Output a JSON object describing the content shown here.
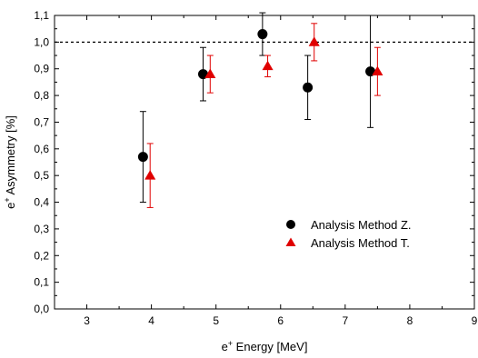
{
  "chart_data": {
    "type": "scatter",
    "title": "",
    "xlabel": {
      "prefix": "e",
      "sup": "+",
      "suffix": " Energy [MeV]"
    },
    "ylabel": {
      "prefix": "e",
      "sup": "+",
      "suffix": " Asymmetry [%]"
    },
    "xlim": [
      2.5,
      9.0
    ],
    "ylim": [
      0.0,
      1.1
    ],
    "x_ticks": [
      3,
      4,
      5,
      6,
      7,
      8,
      9
    ],
    "x_tick_labels": [
      "3",
      "4",
      "5",
      "6",
      "7",
      "8",
      "9"
    ],
    "y_ticks": [
      0.0,
      0.1,
      0.2,
      0.3,
      0.4,
      0.5,
      0.6,
      0.7,
      0.8,
      0.9,
      1.0,
      1.1
    ],
    "y_tick_labels": [
      "0,0",
      "0,1",
      "0,2",
      "0,3",
      "0,4",
      "0,5",
      "0,6",
      "0,7",
      "0,8",
      "0,9",
      "1,0",
      "1,1"
    ],
    "grid": false,
    "legend_position": "bottom-right",
    "reference_line": {
      "y": 1.0,
      "style": "dotted",
      "color": "#000000"
    },
    "series": [
      {
        "name": "Analysis Method Z.",
        "marker": "circle",
        "color": "#000000",
        "points": [
          {
            "x": 3.87,
            "y": 0.57,
            "err_low": 0.4,
            "err_high": 0.74
          },
          {
            "x": 4.8,
            "y": 0.88,
            "err_low": 0.78,
            "err_high": 0.98
          },
          {
            "x": 5.72,
            "y": 1.03,
            "err_low": 0.95,
            "err_high": 1.11
          },
          {
            "x": 6.42,
            "y": 0.83,
            "err_low": 0.71,
            "err_high": 0.95
          },
          {
            "x": 7.39,
            "y": 0.89,
            "err_low": 0.68,
            "err_high": 1.1
          }
        ]
      },
      {
        "name": "Analysis Method T.",
        "marker": "triangle",
        "color": "#e00000",
        "points": [
          {
            "x": 3.98,
            "y": 0.5,
            "err_low": 0.38,
            "err_high": 0.62
          },
          {
            "x": 4.91,
            "y": 0.88,
            "err_low": 0.81,
            "err_high": 0.95
          },
          {
            "x": 5.8,
            "y": 0.91,
            "err_low": 0.87,
            "err_high": 0.95
          },
          {
            "x": 6.52,
            "y": 1.0,
            "err_low": 0.93,
            "err_high": 1.07
          },
          {
            "x": 7.5,
            "y": 0.89,
            "err_low": 0.8,
            "err_high": 0.98
          }
        ]
      }
    ]
  }
}
